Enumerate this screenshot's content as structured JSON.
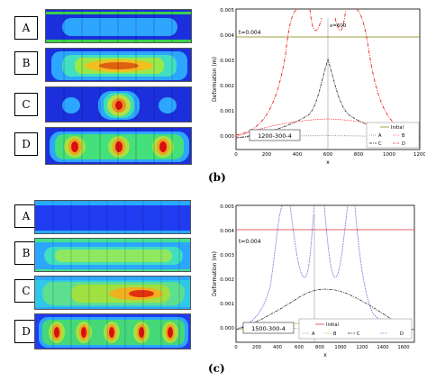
{
  "figure_b": {
    "caption": "(b)",
    "panels": [
      {
        "label": "A"
      },
      {
        "label": "B"
      },
      {
        "label": "C"
      },
      {
        "label": "D"
      }
    ],
    "chart_data": {
      "type": "line",
      "time_label": "t=0.004",
      "marker_label": "x=600",
      "case_label": "1200-300-4",
      "xlabel": "x",
      "ylabel": "Deformation (m)",
      "xlim": [
        0,
        1200
      ],
      "ylim": [
        -0.0005,
        0.005
      ],
      "xticks": [
        "0",
        "200",
        "400",
        "600",
        "800",
        "1000",
        "1200"
      ],
      "yticks": [
        "0.005",
        "0.004",
        "0.003",
        "0.002",
        "0.001",
        "0.000"
      ],
      "legend": [
        {
          "name": "Initial",
          "color": "#808000"
        },
        {
          "name": "A",
          "color": "#404040"
        },
        {
          "name": "B",
          "color": "#ff3030"
        },
        {
          "name": "C",
          "color": "#202020"
        },
        {
          "name": "D",
          "color": "#ee2020"
        }
      ]
    }
  },
  "figure_c": {
    "caption": "(c)",
    "panels": [
      {
        "label": "A"
      },
      {
        "label": "B"
      },
      {
        "label": "C"
      },
      {
        "label": "D"
      }
    ],
    "chart_data": {
      "type": "line",
      "time_label": "t=0.004",
      "case_label": "1500-300-4",
      "xlabel": "x",
      "ylabel": "Deformation (m)",
      "xlim": [
        0,
        1700
      ],
      "ylim": [
        -0.0005,
        0.005
      ],
      "xticks": [
        "0",
        "200",
        "400",
        "600",
        "800",
        "1000",
        "1200",
        "1400",
        "1600"
      ],
      "yticks": [
        "0.005",
        "0.004",
        "0.003",
        "0.002",
        "0.001",
        "0.000"
      ],
      "legend": [
        {
          "name": "Initial",
          "color": "#e03030"
        },
        {
          "name": "A",
          "color": "#707000"
        },
        {
          "name": "B",
          "color": "#c08000"
        },
        {
          "name": "C",
          "color": "#303030"
        },
        {
          "name": "D",
          "color": "#7070e0"
        }
      ]
    }
  }
}
